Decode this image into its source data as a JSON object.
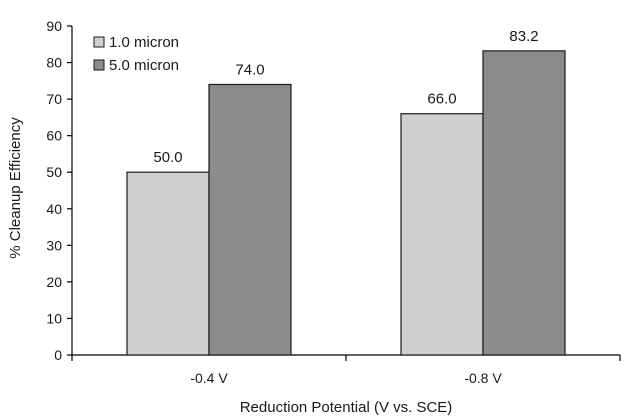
{
  "chart_data": {
    "type": "bar",
    "categories": [
      "-0.4 V",
      "-0.8 V"
    ],
    "series": [
      {
        "name": "1.0 micron",
        "values": [
          50.0,
          66.0
        ],
        "labels": [
          "50.0",
          "66.0"
        ],
        "color": "#cfcfcf"
      },
      {
        "name": "5.0 micron",
        "values": [
          74.0,
          83.2
        ],
        "labels": [
          "74.0",
          "83.2"
        ],
        "color": "#8c8c8c"
      }
    ],
    "title": "",
    "xlabel": "Reduction Potential (V vs. SCE)",
    "ylabel": "% Cleanup Efficiency",
    "ylim": [
      0,
      90
    ],
    "yticks": [
      0,
      10,
      20,
      30,
      40,
      50,
      60,
      70,
      80,
      90
    ],
    "grid": false,
    "legend_position": "top-left"
  }
}
